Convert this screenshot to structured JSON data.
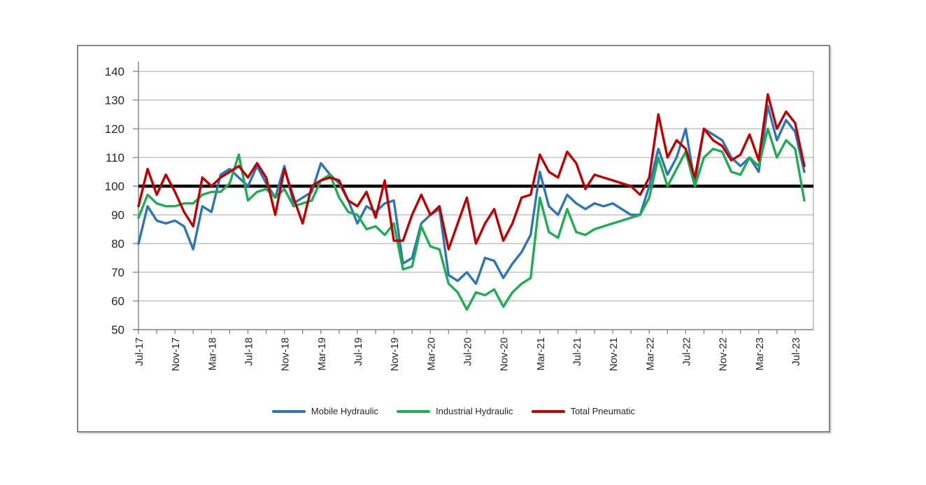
{
  "chart_data": {
    "type": "line",
    "title": "",
    "xlabel": "",
    "ylabel": "",
    "ylim": [
      50,
      140
    ],
    "ytick_step": 10,
    "grid": "horizontal-gray",
    "legend_position": "bottom",
    "x_label_every": 4,
    "x_minor_tick_every": 2,
    "x": [
      "Jul-17",
      "Aug-17",
      "Sep-17",
      "Oct-17",
      "Nov-17",
      "Dec-17",
      "Jan-18",
      "Feb-18",
      "Mar-18",
      "Apr-18",
      "May-18",
      "Jun-18",
      "Jul-18",
      "Aug-18",
      "Sep-18",
      "Oct-18",
      "Nov-18",
      "Dec-18",
      "Jan-19",
      "Feb-19",
      "Mar-19",
      "Apr-19",
      "May-19",
      "Jun-19",
      "Jul-19",
      "Aug-19",
      "Sep-19",
      "Oct-19",
      "Nov-19",
      "Dec-19",
      "Jan-20",
      "Feb-20",
      "Mar-20",
      "Apr-20",
      "May-20",
      "Jun-20",
      "Jul-20",
      "Aug-20",
      "Sep-20",
      "Oct-20",
      "Nov-20",
      "Dec-20",
      "Jan-21",
      "Feb-21",
      "Mar-21",
      "Apr-21",
      "May-21",
      "Jun-21",
      "Jul-21",
      "Aug-21",
      "Sep-21",
      "Oct-21",
      "Nov-21",
      "Dec-21",
      "Jan-22",
      "Feb-22",
      "Mar-22",
      "Apr-22",
      "May-22",
      "Jun-22",
      "Jul-22",
      "Aug-22",
      "Sep-22",
      "Oct-22",
      "Nov-22",
      "Dec-22",
      "Jan-23",
      "Feb-23",
      "Mar-23",
      "Apr-23",
      "May-23",
      "Jun-23",
      "Jul-23",
      "Aug-23"
    ],
    "series": [
      {
        "name": "Mobile Hydraulic",
        "color": "#2E75B6",
        "values": [
          80,
          93,
          88,
          87,
          88,
          86,
          78,
          93,
          91,
          104,
          106,
          103,
          100,
          107,
          101,
          96,
          107,
          94,
          96,
          98,
          108,
          104,
          101,
          95,
          87,
          93,
          91,
          94,
          95,
          73,
          75,
          87,
          90,
          92,
          69,
          67,
          70,
          66,
          75,
          74,
          68,
          73,
          77,
          83,
          105,
          93,
          90,
          97,
          94,
          92,
          94,
          93,
          94,
          92,
          90,
          90,
          100,
          113,
          104,
          110,
          120,
          101,
          120,
          118,
          116,
          110,
          107,
          110,
          105,
          128,
          116,
          123,
          119,
          105
        ]
      },
      {
        "name": "Industrial Hydraulic",
        "color": "#1FAD53",
        "values": [
          89,
          97,
          94,
          93,
          93,
          94,
          94,
          97,
          98,
          98,
          101,
          111,
          95,
          98,
          99,
          96,
          99,
          93,
          94,
          95,
          102,
          104,
          96,
          91,
          90,
          85,
          86,
          83,
          87,
          71,
          72,
          86,
          79,
          78,
          66,
          63,
          57,
          63,
          62,
          64,
          58,
          63,
          66,
          68,
          96,
          84,
          82,
          92,
          84,
          83,
          85,
          86,
          87,
          88,
          89,
          90,
          96,
          110,
          100,
          106,
          112,
          100,
          110,
          113,
          112,
          105,
          104,
          110,
          107,
          120,
          110,
          116,
          113,
          95
        ]
      },
      {
        "name": "Total Pneumatic",
        "color": "#C00000",
        "values": [
          93,
          106,
          97,
          104,
          98,
          91,
          86,
          103,
          100,
          103,
          105,
          107,
          103,
          108,
          103,
          90,
          106,
          96,
          87,
          100,
          102,
          103,
          102,
          95,
          93,
          98,
          89,
          102,
          81,
          81,
          90,
          97,
          90,
          93,
          78,
          87,
          96,
          80,
          87,
          92,
          81,
          87,
          96,
          97,
          111,
          105,
          103,
          112,
          108,
          99,
          104,
          103,
          102,
          101,
          100,
          97,
          103,
          125,
          110,
          116,
          113,
          103,
          120,
          116,
          114,
          109,
          111,
          118,
          109,
          132,
          120,
          126,
          122,
          107
        ]
      }
    ],
    "reference_line": {
      "value": 100,
      "color": "#000000"
    }
  },
  "colors": {
    "gridline": "#A6A6A6",
    "axis": "#808080",
    "tick": "#808080",
    "text": "#262626",
    "frame_border": "#858585"
  }
}
